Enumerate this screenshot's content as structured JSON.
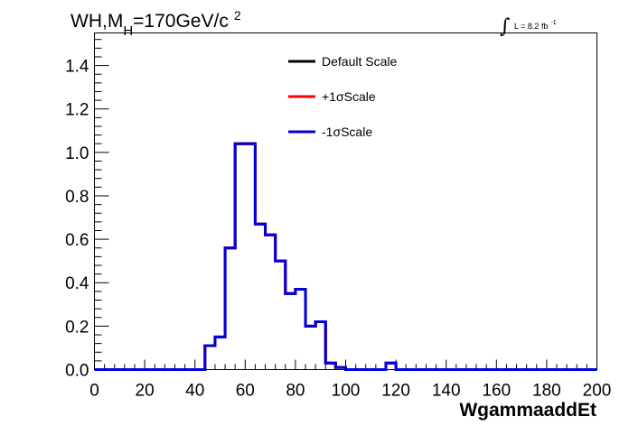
{
  "title": {
    "main": "WH,M",
    "sub": "H",
    "rest": "=170GeV/c",
    "sup": "2"
  },
  "lumi": {
    "integral": "∫",
    "text": "L = 8.2 fb",
    "sup": "-1"
  },
  "chart_data": {
    "type": "line",
    "xlabel": "WgammaaddEt",
    "ylabel": "",
    "xlim": [
      0,
      200
    ],
    "ylim": [
      0,
      1.55
    ],
    "x_ticks": [
      "0",
      "20",
      "40",
      "60",
      "80",
      "100",
      "120",
      "140",
      "160",
      "180",
      "200"
    ],
    "y_ticks": [
      "0.0",
      "0.2",
      "0.4",
      "0.6",
      "0.8",
      "1.0",
      "1.2",
      "1.4"
    ],
    "bin_width": 4,
    "bin_edges_start": 0,
    "legend": {
      "position": "top-center",
      "entries": [
        {
          "name": "Default Scale",
          "color": "#000000"
        },
        {
          "name": "+1σScale",
          "color": "#ff0000"
        },
        {
          "name": "-1σScale",
          "color": "#0000dd"
        }
      ]
    },
    "series": [
      {
        "name": "Default Scale",
        "color": "#000000",
        "values": [
          0,
          0,
          0,
          0,
          0,
          0,
          0,
          0,
          0,
          0,
          0,
          0.11,
          0.15,
          0.56,
          1.04,
          1.04,
          0.67,
          0.62,
          0.5,
          0.35,
          0.37,
          0.2,
          0.22,
          0.03,
          0.01,
          0,
          0,
          0,
          0,
          0.03,
          0,
          0,
          0,
          0,
          0,
          0,
          0,
          0,
          0,
          0,
          0,
          0,
          0,
          0,
          0,
          0,
          0,
          0,
          0,
          0
        ]
      },
      {
        "name": "+1σScale",
        "color": "#ff0000",
        "values": [
          0,
          0,
          0,
          0,
          0,
          0,
          0,
          0,
          0,
          0,
          0,
          0.11,
          0.15,
          0.56,
          1.04,
          1.04,
          0.67,
          0.62,
          0.5,
          0.35,
          0.37,
          0.2,
          0.22,
          0.03,
          0.01,
          0,
          0,
          0,
          0,
          0.03,
          0,
          0,
          0,
          0,
          0,
          0,
          0,
          0,
          0,
          0,
          0,
          0,
          0,
          0,
          0,
          0,
          0,
          0,
          0,
          0
        ]
      },
      {
        "name": "-1σScale",
        "color": "#0000dd",
        "values": [
          0,
          0,
          0,
          0,
          0,
          0,
          0,
          0,
          0,
          0,
          0,
          0.11,
          0.15,
          0.56,
          1.04,
          1.04,
          0.67,
          0.62,
          0.5,
          0.35,
          0.37,
          0.2,
          0.22,
          0.03,
          0.01,
          0,
          0,
          0,
          0,
          0.03,
          0,
          0,
          0,
          0,
          0,
          0,
          0,
          0,
          0,
          0,
          0,
          0,
          0,
          0,
          0,
          0,
          0,
          0,
          0,
          0
        ]
      }
    ]
  }
}
